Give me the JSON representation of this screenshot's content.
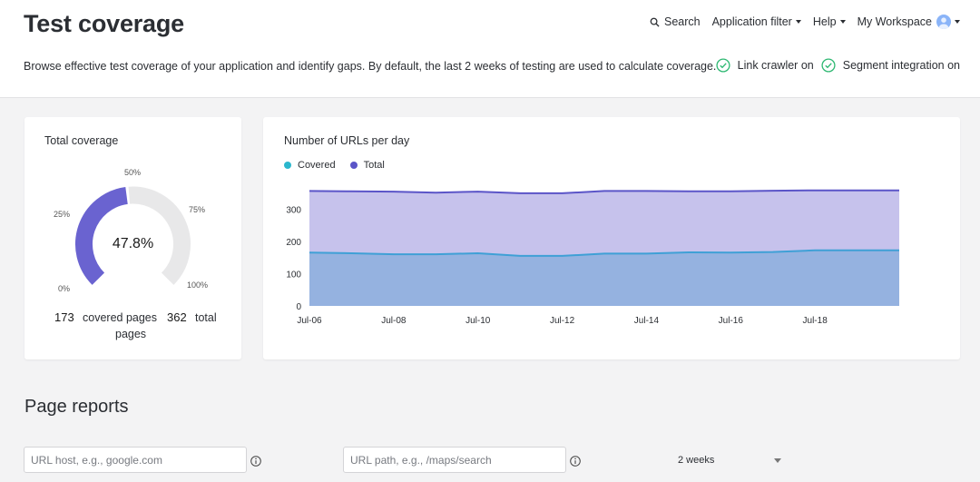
{
  "header": {
    "title": "Test coverage",
    "subtitle": "Browse effective test coverage of your application and identify gaps. By default, the last 2 weeks of testing are used to calculate coverage.",
    "nav": {
      "search": "Search",
      "app_filter": "Application filter",
      "help": "Help",
      "workspace": "My Workspace"
    },
    "integrations": [
      {
        "label": "Link crawler on"
      },
      {
        "label": "Segment integration on"
      }
    ],
    "check_color": "#2eb872"
  },
  "coverage": {
    "title": "Total coverage",
    "percent_label": "47.8%",
    "percent_value": 47.8,
    "ticks": {
      "t0": "0%",
      "t25": "25%",
      "t50": "50%",
      "t75": "75%",
      "t100": "100%"
    },
    "covered": "173",
    "covered_label": "covered pages",
    "total": "362",
    "total_label": "total",
    "pages_label": "pages",
    "fill_color": "#6a63d0",
    "track_color": "#e8e8e9"
  },
  "chart_data": {
    "type": "area",
    "title": "Number of URLs per day",
    "categories": [
      "Jul-06",
      "Jul-07",
      "Jul-08",
      "Jul-09",
      "Jul-10",
      "Jul-11",
      "Jul-12",
      "Jul-13",
      "Jul-14",
      "Jul-15",
      "Jul-16",
      "Jul-17",
      "Jul-18",
      "Jul-19",
      "Jul-20"
    ],
    "tick_labels": [
      "Jul-06",
      "Jul-08",
      "Jul-10",
      "Jul-12",
      "Jul-14",
      "Jul-16",
      "Jul-18"
    ],
    "series": [
      {
        "name": "Covered",
        "color": "#2bb7cd",
        "values": [
          165,
          163,
          160,
          160,
          163,
          155,
          155,
          162,
          162,
          166,
          165,
          167,
          172,
          172,
          172
        ]
      },
      {
        "name": "Total",
        "color": "#5b55c8",
        "values": [
          356,
          355,
          354,
          351,
          354,
          349,
          349,
          356,
          356,
          355,
          355,
          357,
          358,
          358,
          358
        ]
      }
    ],
    "ylim": [
      0,
      360
    ],
    "yticks": [
      "0",
      "100",
      "200",
      "300"
    ],
    "ytick_values": [
      0,
      100,
      200,
      300
    ],
    "xlabel": "",
    "ylabel": ""
  },
  "reports": {
    "title": "Page reports",
    "host_placeholder": "URL host, e.g., google.com",
    "path_placeholder": "URL path, e.g., /maps/search",
    "period": "2 weeks"
  }
}
